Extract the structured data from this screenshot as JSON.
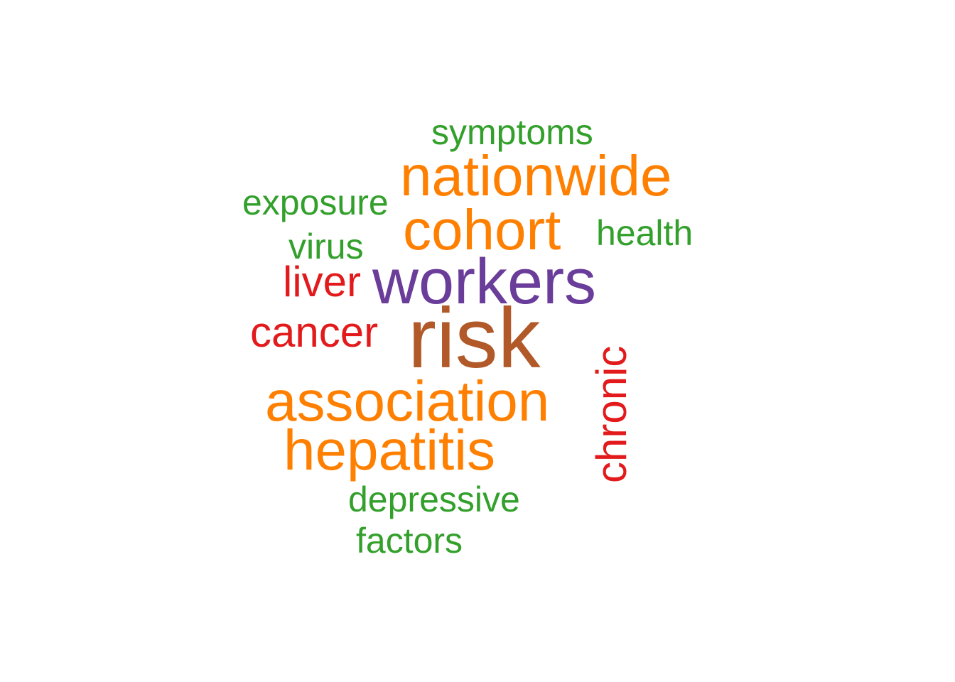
{
  "word_cloud": {
    "colors": {
      "brown": "#B15928",
      "purple": "#6A3D9A",
      "orange": "#FF7F00",
      "red": "#E31A1C",
      "green": "#33A02C"
    },
    "words": [
      {
        "text": "risk",
        "color": "#B15928"
      },
      {
        "text": "workers",
        "color": "#6A3D9A"
      },
      {
        "text": "nationwide",
        "color": "#FF7F00"
      },
      {
        "text": "cohort",
        "color": "#FF7F00"
      },
      {
        "text": "association",
        "color": "#FF7F00"
      },
      {
        "text": "hepatitis",
        "color": "#FF7F00"
      },
      {
        "text": "liver",
        "color": "#E31A1C"
      },
      {
        "text": "cancer",
        "color": "#E31A1C"
      },
      {
        "text": "chronic",
        "color": "#E31A1C"
      },
      {
        "text": "symptoms",
        "color": "#33A02C"
      },
      {
        "text": "exposure",
        "color": "#33A02C"
      },
      {
        "text": "health",
        "color": "#33A02C"
      },
      {
        "text": "virus",
        "color": "#33A02C"
      },
      {
        "text": "depressive",
        "color": "#33A02C"
      },
      {
        "text": "factors",
        "color": "#33A02C"
      }
    ]
  }
}
